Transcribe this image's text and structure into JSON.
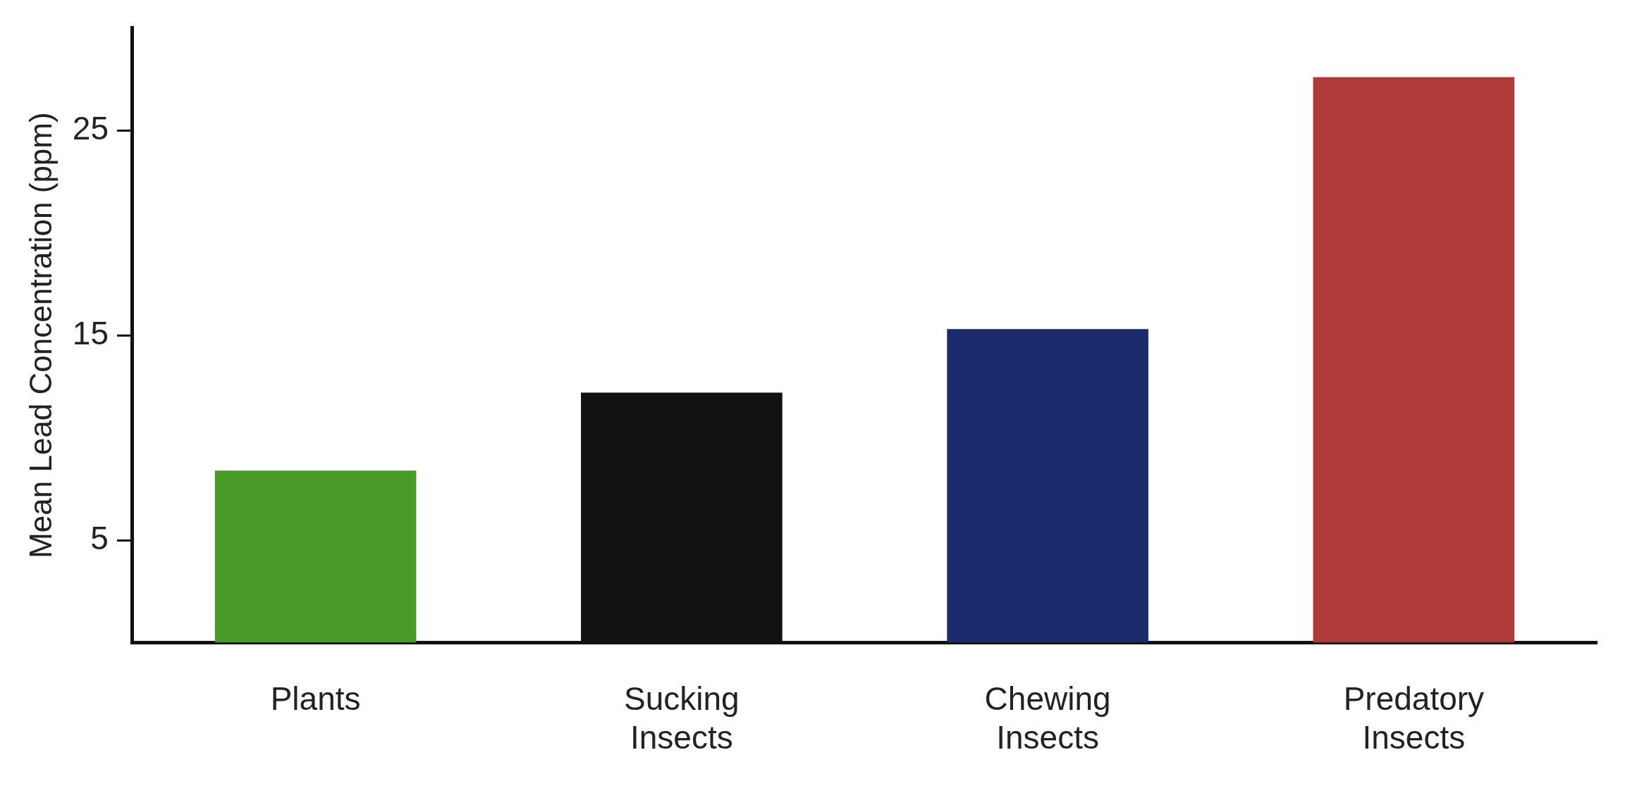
{
  "chart_data": {
    "type": "bar",
    "ylabel": "Mean Lead Concentration (ppm)",
    "categories": [
      "Plants",
      "Sucking Insects",
      "Chewing Insects",
      "Predatory Insects"
    ],
    "values": [
      8.4,
      12.2,
      15.3,
      27.6
    ],
    "colors": [
      "#4a9a2a",
      "#111111",
      "#1c2a6e",
      "#b03a3a"
    ],
    "ylim": [
      0,
      30
    ],
    "yticks": [
      5,
      15,
      25
    ],
    "grid": false,
    "legend": false
  }
}
